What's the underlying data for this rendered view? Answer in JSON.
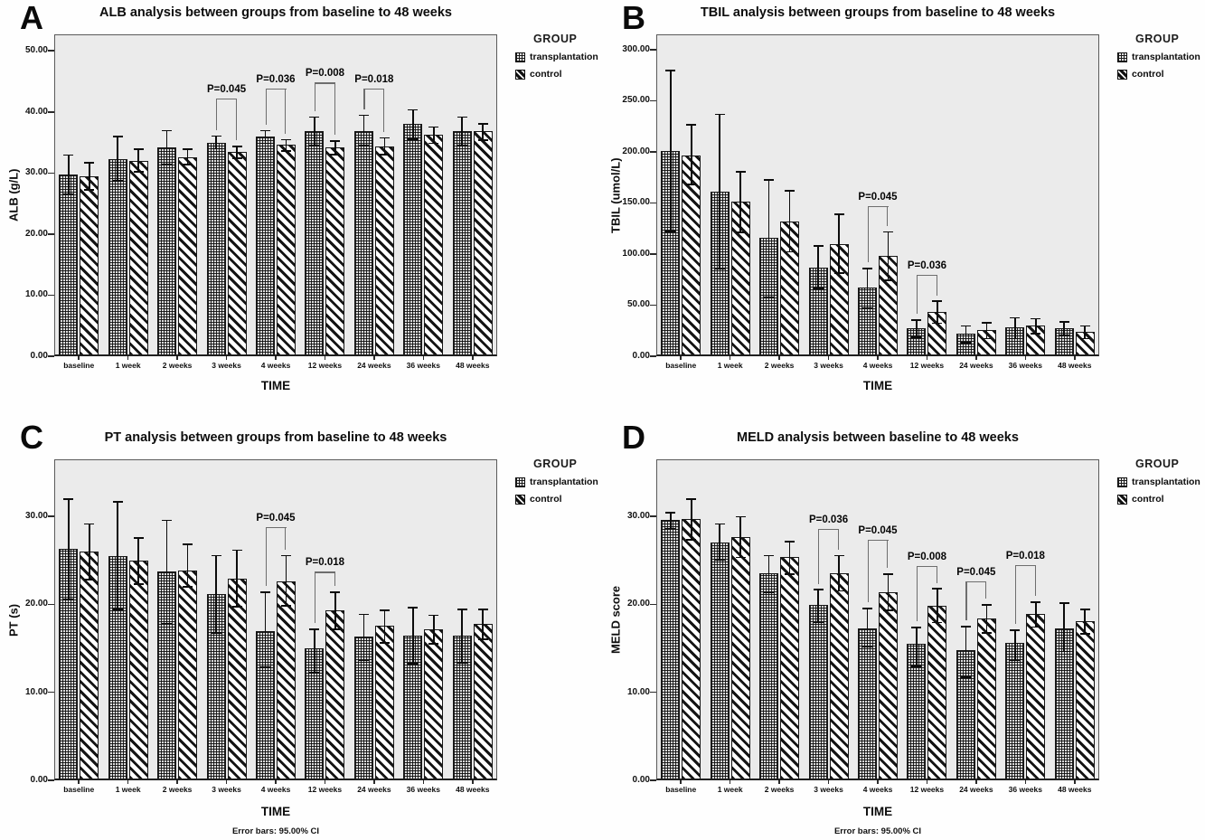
{
  "figure": {
    "xlabel": "TIME",
    "footnote": "Error bars: 95.00% CI",
    "categories": [
      "baseline",
      "1 week",
      "2 weeks",
      "3 weeks",
      "4 weeks",
      "12 weeks",
      "24 weeks",
      "36 weeks",
      "48 weeks"
    ],
    "legend": {
      "title": "GROUP",
      "items": [
        {
          "label": "transplantation",
          "pattern": "grid-hatch"
        },
        {
          "label": "control",
          "pattern": "diagonal-hatch"
        }
      ]
    },
    "colors": {
      "plot_background": "#ebebeb",
      "bars": "black-white-patterns",
      "text": "#0d0d0d"
    }
  },
  "chart_data": [
    {
      "letter": "A",
      "type": "bar",
      "title": "ALB analysis between groups from baseline to 48 weeks",
      "xlabel": "TIME",
      "ylabel": "ALB (g/L)",
      "ylim": [
        0,
        52.7
      ],
      "yticks": [
        0,
        10,
        20,
        30,
        40,
        50
      ],
      "grid": false,
      "legend_position": "right",
      "error_bars": "95% CI",
      "categories": [
        "baseline",
        "1 week",
        "2 weeks",
        "3 weeks",
        "4 weeks",
        "12 weeks",
        "24 weeks",
        "36 weeks",
        "48 weeks"
      ],
      "series": [
        {
          "name": "transplantation",
          "values": [
            29.7,
            32.3,
            34.2,
            35.0,
            35.9,
            36.8,
            36.9,
            38.0,
            36.8
          ],
          "ci_low": [
            26.5,
            28.7,
            31.4,
            33.9,
            34.8,
            34.4,
            34.4,
            35.5,
            34.4
          ],
          "ci_high": [
            33.0,
            36.0,
            37.0,
            36.1,
            37.0,
            39.2,
            39.5,
            40.4,
            39.2
          ]
        },
        {
          "name": "control",
          "values": [
            29.5,
            32.0,
            32.6,
            33.4,
            34.6,
            34.2,
            34.4,
            36.2,
            36.8
          ],
          "ci_low": [
            27.2,
            30.1,
            31.3,
            32.4,
            33.6,
            33.0,
            33.0,
            34.8,
            35.3
          ],
          "ci_high": [
            31.7,
            33.9,
            33.9,
            34.4,
            35.5,
            35.3,
            35.8,
            37.6,
            38.1
          ]
        }
      ],
      "annotations": [
        {
          "category": "3 weeks",
          "label": "P=0.045",
          "top": 42.2
        },
        {
          "category": "4 weeks",
          "label": "P=0.036",
          "top": 43.8
        },
        {
          "category": "12 weeks",
          "label": "P=0.008",
          "top": 44.8
        },
        {
          "category": "24 weeks",
          "label": "P=0.018",
          "top": 43.8
        }
      ],
      "show_footnote": false
    },
    {
      "letter": "B",
      "type": "bar",
      "title": "TBIL analysis between groups from baseline to 48 weeks",
      "xlabel": "TIME",
      "ylabel": "TBIL (umol/L)",
      "ylim": [
        0,
        315
      ],
      "yticks": [
        0,
        50,
        100,
        150,
        200,
        250,
        300
      ],
      "grid": false,
      "legend_position": "right",
      "error_bars": "95% CI",
      "categories": [
        "baseline",
        "1 week",
        "2 weeks",
        "3 weeks",
        "4 weeks",
        "12 weeks",
        "24 weeks",
        "36 weeks",
        "48 weeks"
      ],
      "series": [
        {
          "name": "transplantation",
          "values": [
            201,
            161,
            116,
            87,
            67,
            27,
            22,
            28,
            27
          ],
          "ci_low": [
            122,
            85,
            57,
            66,
            47,
            18,
            13,
            17,
            20
          ],
          "ci_high": [
            280,
            237,
            173,
            108,
            86,
            36,
            30,
            38,
            34
          ]
        },
        {
          "name": "control",
          "values": [
            196,
            151,
            132,
            110,
            98,
            43,
            26,
            30,
            24
          ],
          "ci_low": [
            168,
            121,
            102,
            81,
            74,
            32,
            17,
            22,
            17
          ],
          "ci_high": [
            227,
            181,
            162,
            139,
            122,
            54,
            33,
            37,
            30
          ]
        }
      ],
      "annotations": [
        {
          "category": "4 weeks",
          "label": "P=0.045",
          "top": 147
        },
        {
          "category": "12 weeks",
          "label": "P=0.036",
          "top": 80
        }
      ],
      "show_footnote": false
    },
    {
      "letter": "C",
      "type": "bar",
      "title": "PT analysis between groups from baseline to 48 weeks",
      "xlabel": "TIME",
      "ylabel": "PT (s)",
      "ylim": [
        0,
        36.5
      ],
      "yticks": [
        0,
        10,
        20,
        30
      ],
      "grid": false,
      "legend_position": "right",
      "error_bars": "95% CI",
      "categories": [
        "baseline",
        "1 week",
        "2 weeks",
        "3 weeks",
        "4 weeks",
        "12 weeks",
        "24 weeks",
        "36 weeks",
        "48 weeks"
      ],
      "series": [
        {
          "name": "transplantation",
          "values": [
            26.3,
            25.5,
            23.8,
            21.2,
            17.0,
            15.0,
            16.3,
            16.4,
            16.4
          ],
          "ci_low": [
            20.5,
            19.4,
            17.8,
            16.7,
            12.8,
            12.2,
            13.6,
            13.2,
            13.3
          ],
          "ci_high": [
            32.0,
            31.7,
            29.6,
            25.6,
            21.4,
            17.2,
            18.9,
            19.7,
            19.5
          ]
        },
        {
          "name": "control",
          "values": [
            26.0,
            25.0,
            23.9,
            22.9,
            22.6,
            19.3,
            17.6,
            17.2,
            17.8
          ],
          "ci_low": [
            22.8,
            22.3,
            22.0,
            19.7,
            19.8,
            17.1,
            15.6,
            15.5,
            16.0
          ],
          "ci_high": [
            29.2,
            27.6,
            26.9,
            26.2,
            25.6,
            21.4,
            19.4,
            18.8,
            19.5
          ]
        }
      ],
      "annotations": [
        {
          "category": "4 weeks",
          "label": "P=0.045",
          "top": 28.8
        },
        {
          "category": "12 weeks",
          "label": "P=0.018",
          "top": 23.7
        }
      ],
      "show_footnote": true
    },
    {
      "letter": "D",
      "type": "bar",
      "title": "MELD analysis between baseline to 48 weeks",
      "xlabel": "TIME",
      "ylabel": "MELD score",
      "ylim": [
        0,
        36.5
      ],
      "yticks": [
        0,
        10,
        20,
        30
      ],
      "grid": false,
      "legend_position": "right",
      "error_bars": "95% CI",
      "categories": [
        "baseline",
        "1 week",
        "2 weeks",
        "3 weeks",
        "4 weeks",
        "12 weeks",
        "24 weeks",
        "36 weeks",
        "48 weeks"
      ],
      "series": [
        {
          "name": "transplantation",
          "values": [
            29.6,
            27.0,
            23.5,
            19.9,
            17.3,
            15.5,
            14.8,
            15.6,
            17.3
          ],
          "ci_low": [
            28.6,
            25.0,
            21.3,
            17.9,
            15.2,
            12.9,
            11.7,
            13.6,
            14.6
          ],
          "ci_high": [
            30.5,
            29.2,
            25.6,
            21.7,
            19.6,
            17.4,
            17.5,
            17.1,
            20.2
          ]
        },
        {
          "name": "control",
          "values": [
            29.7,
            27.7,
            25.4,
            23.5,
            21.4,
            19.8,
            18.4,
            18.9,
            18.1
          ],
          "ci_low": [
            27.3,
            25.3,
            23.4,
            21.5,
            19.3,
            17.9,
            16.7,
            17.4,
            16.6
          ],
          "ci_high": [
            32.0,
            30.0,
            27.2,
            25.6,
            23.5,
            21.8,
            20.0,
            20.3,
            19.5
          ]
        }
      ],
      "annotations": [
        {
          "category": "3 weeks",
          "label": "P=0.036",
          "top": 28.6
        },
        {
          "category": "4 weeks",
          "label": "P=0.045",
          "top": 27.4
        },
        {
          "category": "12 weeks",
          "label": "P=0.008",
          "top": 24.4
        },
        {
          "category": "24 weeks",
          "label": "P=0.045",
          "top": 22.6
        },
        {
          "category": "36 weeks",
          "label": "P=0.018",
          "top": 24.5
        }
      ],
      "show_footnote": true
    }
  ]
}
